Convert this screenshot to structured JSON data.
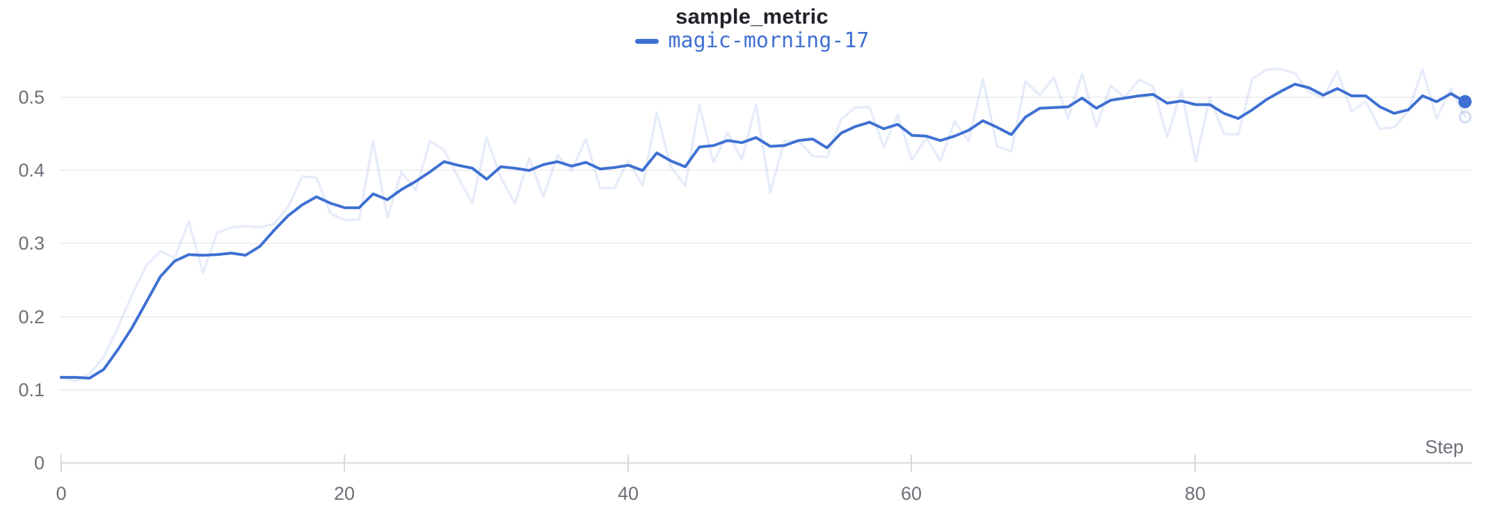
{
  "header": {
    "title": "sample_metric"
  },
  "legend": {
    "series_label": "magic-morning-17",
    "color": "#3e70d2"
  },
  "axes": {
    "x_axis_label": "Step",
    "y_tick_labels": [
      "0.5",
      "0.4",
      "0.3",
      "0.2",
      "0.1",
      "0"
    ],
    "x_tick_labels": [
      "0",
      "20",
      "40",
      "60",
      "80"
    ]
  },
  "chart_data": {
    "type": "line",
    "title": "sample_metric",
    "xlabel": "Step",
    "ylabel": "",
    "x_start": 0,
    "x_step": 1,
    "x_range": [
      0,
      99
    ],
    "ylim": [
      0,
      0.55
    ],
    "x_tick_values": [
      0,
      20,
      40,
      60,
      80
    ],
    "y_tick_values": [
      0,
      0.1,
      0.2,
      0.3,
      0.4,
      0.5
    ],
    "grid": "horizontal",
    "legend_position": "top-center",
    "series": [
      {
        "name": "magic-morning-17 (original)",
        "role": "original",
        "color": "#3e70d2",
        "opacity": 0.13,
        "values": [
          0.118,
          0.112,
          0.122,
          0.145,
          0.185,
          0.23,
          0.27,
          0.29,
          0.28,
          0.33,
          0.26,
          0.315,
          0.322,
          0.324,
          0.322,
          0.327,
          0.35,
          0.392,
          0.39,
          0.341,
          0.332,
          0.333,
          0.44,
          0.335,
          0.398,
          0.373,
          0.44,
          0.428,
          0.39,
          0.355,
          0.445,
          0.39,
          0.355,
          0.417,
          0.364,
          0.421,
          0.4,
          0.443,
          0.376,
          0.376,
          0.414,
          0.379,
          0.479,
          0.405,
          0.379,
          0.489,
          0.411,
          0.452,
          0.415,
          0.49,
          0.37,
          0.44,
          0.44,
          0.42,
          0.418,
          0.47,
          0.486,
          0.487,
          0.432,
          0.476,
          0.414,
          0.445,
          0.413,
          0.467,
          0.44,
          0.525,
          0.433,
          0.426,
          0.522,
          0.503,
          0.527,
          0.471,
          0.532,
          0.459,
          0.516,
          0.5,
          0.524,
          0.515,
          0.445,
          0.51,
          0.412,
          0.5,
          0.45,
          0.449,
          0.525,
          0.538,
          0.539,
          0.533,
          0.507,
          0.5,
          0.536,
          0.481,
          0.494,
          0.457,
          0.459,
          0.481,
          0.538,
          0.471,
          0.512,
          0.473
        ]
      },
      {
        "name": "magic-morning-17",
        "role": "smoothed",
        "color": "#3e70d2",
        "opacity": 1,
        "values": [
          0.117,
          0.117,
          0.116,
          0.128,
          0.155,
          0.185,
          0.22,
          0.255,
          0.276,
          0.285,
          0.284,
          0.285,
          0.287,
          0.284,
          0.296,
          0.318,
          0.338,
          0.353,
          0.364,
          0.355,
          0.349,
          0.349,
          0.368,
          0.36,
          0.374,
          0.385,
          0.398,
          0.412,
          0.407,
          0.403,
          0.388,
          0.405,
          0.403,
          0.4,
          0.408,
          0.412,
          0.406,
          0.411,
          0.402,
          0.404,
          0.407,
          0.4,
          0.424,
          0.413,
          0.405,
          0.432,
          0.434,
          0.441,
          0.438,
          0.445,
          0.433,
          0.434,
          0.441,
          0.443,
          0.431,
          0.451,
          0.46,
          0.466,
          0.457,
          0.463,
          0.448,
          0.447,
          0.441,
          0.447,
          0.455,
          0.468,
          0.459,
          0.449,
          0.473,
          0.485,
          0.486,
          0.487,
          0.499,
          0.485,
          0.496,
          0.499,
          0.502,
          0.504,
          0.492,
          0.495,
          0.49,
          0.49,
          0.478,
          0.471,
          0.483,
          0.497,
          0.508,
          0.518,
          0.513,
          0.503,
          0.512,
          0.502,
          0.502,
          0.487,
          0.478,
          0.483,
          0.502,
          0.494,
          0.505,
          0.494
        ]
      }
    ]
  }
}
